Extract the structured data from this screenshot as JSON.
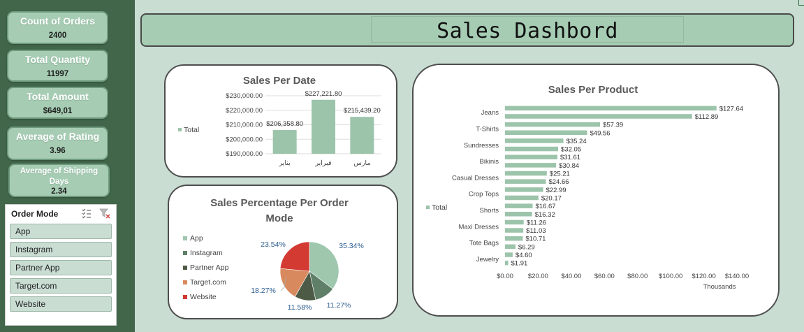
{
  "dashboard": {
    "title": "Sales Dashbord"
  },
  "kpis": [
    {
      "label": "Count of Orders",
      "value": "2400"
    },
    {
      "label": "Total Quantity",
      "value": "11997"
    },
    {
      "label": "Total  Amount",
      "value": "$649,01"
    },
    {
      "label": "Average of Rating",
      "value": "3.96"
    },
    {
      "label": "Average of Shipping Days",
      "value": "2.34"
    }
  ],
  "slicer": {
    "title": "Order Mode",
    "items": [
      "App",
      "Instagram",
      "Partner App",
      "Target.com",
      "Website"
    ],
    "icons": [
      "multi-select-icon",
      "clear-filter-icon"
    ]
  },
  "colors": {
    "sidebar": "#41664a",
    "background": "#c9ddd3",
    "accent": "#a6cdb4",
    "bar": "#9cc4aa"
  },
  "chart_data": [
    {
      "type": "bar",
      "title": "Sales Per Date",
      "categories": [
        "يناير",
        "فبراير",
        "مارس"
      ],
      "series": [
        {
          "name": "Total",
          "values": [
            206358.8,
            227221.8,
            215439.2
          ]
        }
      ],
      "data_labels": [
        "$206,358.80",
        "$227,221.80",
        "$215,439.20"
      ],
      "ylim": [
        190000,
        230000
      ],
      "yticks": [
        "$190,000.00",
        "$200,000.00",
        "$210,000.00",
        "$220,000.00",
        "$230,000.00"
      ],
      "grid": true,
      "legend": "left"
    },
    {
      "type": "pie",
      "title": "Sales Percentage Per Order Mode",
      "labels": [
        "App",
        "Instagram",
        "Partner App",
        "Target.com",
        "Website"
      ],
      "values": [
        35.34,
        11.27,
        11.58,
        18.27,
        23.54
      ],
      "data_labels": [
        "35.34%",
        "11.27%",
        "11.58%",
        "18.27%",
        "23.54%"
      ],
      "colors": [
        "#9ec7ae",
        "#5f7f69",
        "#4d5a45",
        "#d88a5e",
        "#d23a32"
      ],
      "legend": "left"
    },
    {
      "type": "bar",
      "orientation": "horizontal",
      "title": "Sales Per Product",
      "xlabel": "Thousands",
      "series": [
        {
          "name": "Total",
          "values": [
            127.64,
            112.89,
            57.39,
            49.56,
            35.24,
            32.05,
            31.61,
            30.84,
            25.21,
            24.66,
            22.99,
            20.17,
            16.67,
            16.32,
            11.26,
            11.03,
            10.71,
            6.29,
            4.6,
            1.91
          ]
        }
      ],
      "data_labels": [
        "$127.64",
        "$112.89",
        "$57.39",
        "$49.56",
        "$35.24",
        "$32.05",
        "$31.61",
        "$30.84",
        "$25.21",
        "$24.66",
        "$22.99",
        "$20.17",
        "$16.67",
        "$16.32",
        "$11.26",
        "$11.03",
        "$10.71",
        "$6.29",
        "$4.60",
        "$1.91"
      ],
      "category_labels_shown": [
        "Jeans",
        "T-Shirts",
        "Sundresses",
        "Bikinis",
        "Casual Dresses",
        "Crop Tops",
        "Shorts",
        "Maxi Dresses",
        "Tote Bags",
        "Jewelry"
      ],
      "xlim": [
        0,
        140
      ],
      "xticks": [
        "$0.00",
        "$20.00",
        "$40.00",
        "$60.00",
        "$80.00",
        "$100.00",
        "$120.00",
        "$140.00"
      ],
      "legend": "left"
    }
  ]
}
